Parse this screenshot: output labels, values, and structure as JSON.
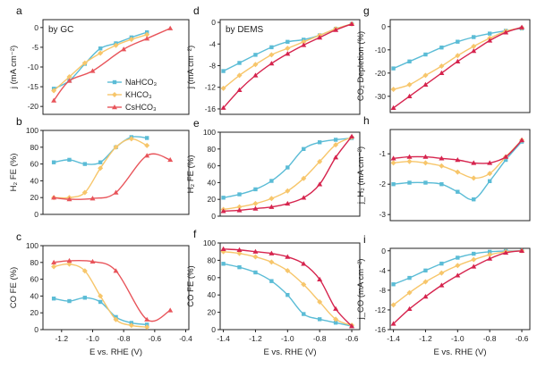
{
  "colors": {
    "NaHCO3": "#5bbcd6",
    "KHCO3": "#f7c66b",
    "CsHCO3": "#e8545a",
    "DEMS_Cs": "#d6244e"
  },
  "legend": [
    "NaHCO₃",
    "KHCO₃",
    "CsHCO₃"
  ],
  "chart_data": [
    {
      "id": "a",
      "panel_label": "a",
      "annotation": "by GC",
      "type": "line",
      "ylabel": "j (mA cm⁻²)",
      "ylim": [
        -22,
        2
      ],
      "yticks": [
        0,
        -5,
        -10,
        -15,
        -20
      ],
      "xlim": [
        -1.32,
        -0.38
      ],
      "xticks": [],
      "grid": false,
      "series": [
        {
          "name": "NaHCO₃",
          "color": "#5bbcd6",
          "x": [
            -1.25,
            -1.15,
            -1.05,
            -0.95,
            -0.85,
            -0.75,
            -0.65
          ],
          "y": [
            -15.5,
            -13.5,
            -9.2,
            -5.3,
            -4.0,
            -2.5,
            -1.2
          ]
        },
        {
          "name": "KHCO₃",
          "color": "#f7c66b",
          "x": [
            -1.25,
            -1.15,
            -1.05,
            -0.95,
            -0.85,
            -0.75,
            -0.65
          ],
          "y": [
            -16.0,
            -12.5,
            -9.0,
            -6.5,
            -4.5,
            -3.0,
            -1.8
          ]
        },
        {
          "name": "CsHCO₃",
          "color": "#e8545a",
          "x": [
            -1.25,
            -1.15,
            -1.0,
            -0.8,
            -0.65,
            -0.5
          ],
          "y": [
            -18.5,
            -13.5,
            -11.0,
            -5.5,
            -2.8,
            -0.2
          ]
        }
      ]
    },
    {
      "id": "b",
      "panel_label": "b",
      "type": "line",
      "ylabel": "H₂ FE (%)",
      "ylim": [
        0,
        100
      ],
      "yticks": [
        0,
        20,
        40,
        60,
        80,
        100
      ],
      "xlim": [
        -1.32,
        -0.38
      ],
      "xticks": [],
      "grid": false,
      "series": [
        {
          "name": "NaHCO₃",
          "color": "#5bbcd6",
          "x": [
            -1.25,
            -1.15,
            -1.05,
            -0.95,
            -0.85,
            -0.75,
            -0.65
          ],
          "y": [
            62,
            65,
            60,
            62,
            80,
            92,
            91
          ]
        },
        {
          "name": "KHCO₃",
          "color": "#f7c66b",
          "x": [
            -1.25,
            -1.15,
            -1.05,
            -0.95,
            -0.85,
            -0.75,
            -0.65
          ],
          "y": [
            20,
            20,
            26,
            55,
            80,
            90,
            82
          ]
        },
        {
          "name": "CsHCO₃",
          "color": "#e8545a",
          "x": [
            -1.25,
            -1.15,
            -1.0,
            -0.85,
            -0.65,
            -0.5
          ],
          "y": [
            20,
            18,
            19,
            26,
            70,
            65
          ]
        }
      ]
    },
    {
      "id": "c",
      "panel_label": "c",
      "type": "line",
      "ylabel": "CO FE (%)",
      "xlabel": "E vs. RHE (V)",
      "ylim": [
        0,
        100
      ],
      "yticks": [
        0,
        20,
        40,
        60,
        80,
        100
      ],
      "xlim": [
        -1.32,
        -0.38
      ],
      "xticks": [
        -1.2,
        -1.0,
        -0.8,
        -0.6,
        -0.4
      ],
      "grid": false,
      "series": [
        {
          "name": "NaHCO₃",
          "color": "#5bbcd6",
          "x": [
            -1.25,
            -1.15,
            -1.05,
            -0.95,
            -0.85,
            -0.75,
            -0.65
          ],
          "y": [
            37,
            34,
            38,
            33,
            15,
            8,
            6
          ]
        },
        {
          "name": "KHCO₃",
          "color": "#f7c66b",
          "x": [
            -1.25,
            -1.15,
            -1.05,
            -0.95,
            -0.85,
            -0.75,
            -0.65
          ],
          "y": [
            75,
            78,
            70,
            40,
            12,
            5,
            3
          ]
        },
        {
          "name": "CsHCO₃",
          "color": "#e8545a",
          "x": [
            -1.25,
            -1.15,
            -1.0,
            -0.85,
            -0.65,
            -0.5
          ],
          "y": [
            80,
            82,
            81,
            70,
            12,
            23
          ]
        }
      ]
    },
    {
      "id": "d",
      "panel_label": "d",
      "annotation": "by DEMS",
      "type": "line",
      "ylabel": "j (mA cm⁻²)",
      "ylim": [
        -17,
        0.5
      ],
      "yticks": [
        0,
        -4,
        -8,
        -12,
        -16
      ],
      "xlim": [
        -1.42,
        -0.55
      ],
      "xticks": [],
      "grid": false,
      "series": [
        {
          "name": "NaHCO₃",
          "color": "#5bbcd6",
          "x": [
            -1.4,
            -1.3,
            -1.2,
            -1.1,
            -1.0,
            -0.9,
            -0.8,
            -0.7,
            -0.6
          ],
          "y": [
            -9.0,
            -7.5,
            -6.0,
            -4.6,
            -3.6,
            -3.2,
            -2.4,
            -1.2,
            -0.3
          ]
        },
        {
          "name": "KHCO₃",
          "color": "#f7c66b",
          "x": [
            -1.4,
            -1.3,
            -1.2,
            -1.1,
            -1.0,
            -0.9,
            -0.8,
            -0.7,
            -0.6
          ],
          "y": [
            -12.2,
            -9.8,
            -7.8,
            -6.0,
            -4.8,
            -3.6,
            -2.4,
            -1.2,
            -0.3
          ]
        },
        {
          "name": "CsHCO₃",
          "color": "#d6244e",
          "x": [
            -1.4,
            -1.3,
            -1.2,
            -1.1,
            -1.0,
            -0.9,
            -0.8,
            -0.7,
            -0.6
          ],
          "y": [
            -15.8,
            -12.5,
            -9.8,
            -7.6,
            -5.8,
            -4.2,
            -2.8,
            -1.4,
            -0.3
          ]
        }
      ]
    },
    {
      "id": "e",
      "panel_label": "e",
      "type": "line",
      "markers": true,
      "ylabel": "H₂ FE (%)",
      "ylim": [
        0,
        100
      ],
      "yticks": [
        0,
        20,
        40,
        60,
        80,
        100
      ],
      "xlim": [
        -1.42,
        -0.55
      ],
      "xticks": [],
      "grid": false,
      "series": [
        {
          "name": "NaHCO₃",
          "color": "#5bbcd6",
          "x": [
            -1.4,
            -1.3,
            -1.2,
            -1.1,
            -1.0,
            -0.9,
            -0.8,
            -0.7,
            -0.6
          ],
          "y": [
            22,
            26,
            32,
            42,
            58,
            80,
            88,
            91,
            93
          ]
        },
        {
          "name": "KHCO₃",
          "color": "#f7c66b",
          "x": [
            -1.4,
            -1.3,
            -1.2,
            -1.1,
            -1.0,
            -0.9,
            -0.8,
            -0.7,
            -0.6
          ],
          "y": [
            8,
            11,
            15,
            21,
            30,
            45,
            65,
            85,
            94
          ]
        },
        {
          "name": "CsHCO₃",
          "color": "#d6244e",
          "x": [
            -1.4,
            -1.3,
            -1.2,
            -1.1,
            -1.0,
            -0.9,
            -0.8,
            -0.7,
            -0.6
          ],
          "y": [
            6,
            7,
            9,
            11,
            15,
            22,
            38,
            70,
            95
          ]
        }
      ]
    },
    {
      "id": "f",
      "panel_label": "f",
      "type": "line",
      "markers": true,
      "ylabel": "CO FE (%)",
      "xlabel": "E vs. RHE (V)",
      "ylim": [
        0,
        100
      ],
      "yticks": [
        0,
        20,
        40,
        60,
        80,
        100
      ],
      "xlim": [
        -1.42,
        -0.55
      ],
      "xticks": [
        -1.4,
        -1.2,
        -1.0,
        -0.8,
        -0.6
      ],
      "grid": false,
      "series": [
        {
          "name": "NaHCO₃",
          "color": "#5bbcd6",
          "x": [
            -1.4,
            -1.3,
            -1.2,
            -1.1,
            -1.0,
            -0.9,
            -0.8,
            -0.7,
            -0.6
          ],
          "y": [
            76,
            72,
            66,
            56,
            40,
            18,
            12,
            8,
            4
          ]
        },
        {
          "name": "KHCO₃",
          "color": "#f7c66b",
          "x": [
            -1.4,
            -1.3,
            -1.2,
            -1.1,
            -1.0,
            -0.9,
            -0.8,
            -0.7,
            -0.6
          ],
          "y": [
            90,
            88,
            84,
            78,
            68,
            52,
            32,
            12,
            5
          ]
        },
        {
          "name": "CsHCO₃",
          "color": "#d6244e",
          "x": [
            -1.4,
            -1.3,
            -1.2,
            -1.1,
            -1.0,
            -0.9,
            -0.8,
            -0.7,
            -0.6
          ],
          "y": [
            93,
            92,
            90,
            88,
            84,
            76,
            58,
            24,
            4
          ]
        }
      ]
    },
    {
      "id": "g",
      "panel_label": "g",
      "type": "line",
      "markers": true,
      "ylabel": "CO₂ Depletion (%)",
      "ylim": [
        -37,
        3
      ],
      "yticks": [
        0,
        -10,
        -20,
        -30
      ],
      "xlim": [
        -1.42,
        -0.55
      ],
      "xticks": [],
      "grid": false,
      "series": [
        {
          "name": "NaHCO₃",
          "color": "#5bbcd6",
          "x": [
            -1.4,
            -1.3,
            -1.2,
            -1.1,
            -1.0,
            -0.9,
            -0.8,
            -0.7,
            -0.6
          ],
          "y": [
            -18,
            -15,
            -12,
            -9,
            -6.5,
            -4.5,
            -3,
            -1.8,
            -0.8
          ]
        },
        {
          "name": "KHCO₃",
          "color": "#f7c66b",
          "x": [
            -1.4,
            -1.3,
            -1.2,
            -1.1,
            -1.0,
            -0.9,
            -0.8,
            -0.7,
            -0.6
          ],
          "y": [
            -27,
            -25,
            -21,
            -17,
            -12.5,
            -8.5,
            -5,
            -2,
            -0.5
          ]
        },
        {
          "name": "CsHCO₃",
          "color": "#d6244e",
          "x": [
            -1.4,
            -1.3,
            -1.2,
            -1.1,
            -1.0,
            -0.9,
            -0.8,
            -0.7,
            -0.6
          ],
          "y": [
            -35,
            -30,
            -25,
            -20,
            -15,
            -10.5,
            -6,
            -2.5,
            -0.3
          ]
        }
      ]
    },
    {
      "id": "h",
      "panel_label": "h",
      "type": "line",
      "markers": true,
      "ylabel": "j_H₂ (mA cm⁻²)",
      "ylim": [
        -3.2,
        -0.2
      ],
      "yticks": [
        -1,
        -2,
        -3
      ],
      "xlim": [
        -1.42,
        -0.55
      ],
      "xticks": [],
      "grid": false,
      "series": [
        {
          "name": "NaHCO₃",
          "color": "#5bbcd6",
          "x": [
            -1.4,
            -1.3,
            -1.2,
            -1.1,
            -1.0,
            -0.9,
            -0.8,
            -0.7,
            -0.6
          ],
          "y": [
            -2.0,
            -1.95,
            -1.95,
            -2.0,
            -2.25,
            -2.5,
            -1.9,
            -1.2,
            -0.6
          ]
        },
        {
          "name": "KHCO₃",
          "color": "#f7c66b",
          "x": [
            -1.4,
            -1.3,
            -1.2,
            -1.1,
            -1.0,
            -0.9,
            -0.8,
            -0.7,
            -0.6
          ],
          "y": [
            -1.3,
            -1.25,
            -1.3,
            -1.4,
            -1.6,
            -1.8,
            -1.65,
            -1.1,
            -0.55
          ]
        },
        {
          "name": "CsHCO₃",
          "color": "#d6244e",
          "x": [
            -1.4,
            -1.3,
            -1.2,
            -1.1,
            -1.0,
            -0.9,
            -0.8,
            -0.7,
            -0.6
          ],
          "y": [
            -1.15,
            -1.1,
            -1.1,
            -1.15,
            -1.2,
            -1.3,
            -1.3,
            -1.1,
            -0.55
          ]
        }
      ]
    },
    {
      "id": "i",
      "panel_label": "i",
      "type": "line",
      "markers": true,
      "ylabel": "j_CO (mA cm⁻²)",
      "xlabel": "E vs. RHE (V)",
      "ylim": [
        -16,
        0.5
      ],
      "yticks": [
        0,
        -4,
        -8,
        -12,
        -16
      ],
      "xlim": [
        -1.42,
        -0.55
      ],
      "xticks": [
        -1.4,
        -1.2,
        -1.0,
        -0.8,
        -0.6
      ],
      "grid": false,
      "series": [
        {
          "name": "NaHCO₃",
          "color": "#5bbcd6",
          "x": [
            -1.4,
            -1.3,
            -1.2,
            -1.1,
            -1.0,
            -0.9,
            -0.8,
            -0.7,
            -0.6
          ],
          "y": [
            -6.8,
            -5.5,
            -4.0,
            -2.6,
            -1.4,
            -0.6,
            -0.2,
            -0.05,
            0
          ]
        },
        {
          "name": "KHCO₃",
          "color": "#f7c66b",
          "x": [
            -1.4,
            -1.3,
            -1.2,
            -1.1,
            -1.0,
            -0.9,
            -0.8,
            -0.7,
            -0.6
          ],
          "y": [
            -11,
            -8.5,
            -6.3,
            -4.5,
            -3.0,
            -1.8,
            -0.8,
            -0.2,
            0
          ]
        },
        {
          "name": "CsHCO₃",
          "color": "#d6244e",
          "x": [
            -1.4,
            -1.3,
            -1.2,
            -1.1,
            -1.0,
            -0.9,
            -0.8,
            -0.7,
            -0.6
          ],
          "y": [
            -14.8,
            -11.8,
            -9.3,
            -7.0,
            -5.0,
            -3.2,
            -1.6,
            -0.4,
            0
          ]
        }
      ]
    }
  ]
}
